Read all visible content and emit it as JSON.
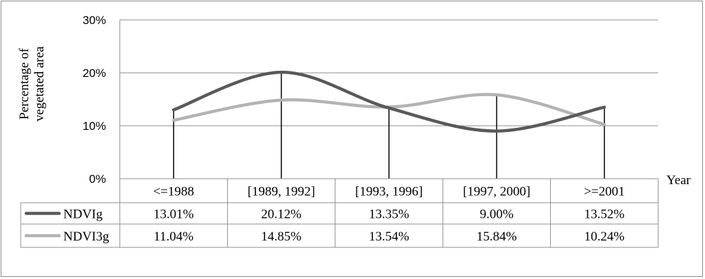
{
  "chart_data": {
    "type": "line",
    "title": "",
    "ylabel_lines": [
      "Percentage of",
      "vegetated area"
    ],
    "xlabel": "Year",
    "yticks": [
      "0%",
      "10%",
      "20%",
      "30%"
    ],
    "ylim": [
      0,
      30
    ],
    "grid": true,
    "legend": "data-table-left",
    "categories": [
      "<=1988",
      "[1989, 1992]",
      "[1993, 1996]",
      "[1997, 2000]",
      ">=2001"
    ],
    "series": [
      {
        "name": "NDVIg",
        "color": "#595959",
        "values": [
          13.01,
          20.12,
          13.35,
          9.0,
          13.52
        ],
        "labels": [
          "13.01%",
          "20.12%",
          "13.35%",
          "9.00%",
          "13.52%"
        ]
      },
      {
        "name": "NDVI3g",
        "color": "#b3b3b3",
        "values": [
          11.04,
          14.85,
          13.54,
          15.84,
          10.24
        ],
        "labels": [
          "11.04%",
          "14.85%",
          "13.54%",
          "15.84%",
          "10.24%"
        ]
      }
    ]
  }
}
